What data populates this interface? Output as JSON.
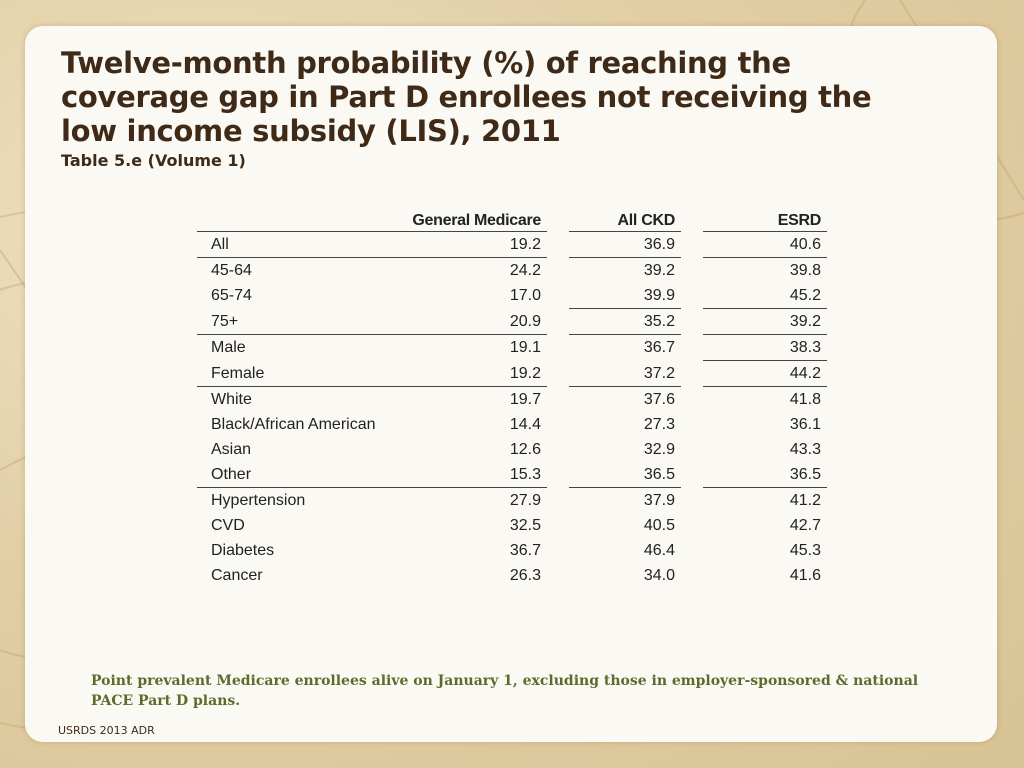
{
  "slide": {
    "title": "Twelve-month probability (%) of reaching the coverage gap in Part D enrollees not receiving the low income subsidy  (LIS), 2011",
    "subtitle": "Table 5.e (Volume 1)",
    "note": "Point prevalent Medicare enrollees alive on January 1, excluding those in employer-sponsored & national PACE Part D plans.",
    "footer": "USRDS 2013 ADR"
  },
  "table": {
    "columns": [
      "",
      "General Medicare",
      "All CKD",
      "ESRD"
    ],
    "rows": [
      {
        "label": "All",
        "values": [
          "19.2",
          "36.9",
          "40.6"
        ]
      },
      {
        "label": "45-64",
        "values": [
          "24.2",
          "39.2",
          "39.8"
        ]
      },
      {
        "label": "65-74",
        "values": [
          "17.0",
          "39.9",
          "45.2"
        ]
      },
      {
        "label": "75+",
        "values": [
          "20.9",
          "35.2",
          "39.2"
        ]
      },
      {
        "label": "Male",
        "values": [
          "19.1",
          "36.7",
          "38.3"
        ]
      },
      {
        "label": "Female",
        "values": [
          "19.2",
          "37.2",
          "44.2"
        ]
      },
      {
        "label": "White",
        "values": [
          "19.7",
          "37.6",
          "41.8"
        ]
      },
      {
        "label": "Black/African American",
        "values": [
          "14.4",
          "27.3",
          "36.1"
        ]
      },
      {
        "label": "Asian",
        "values": [
          "12.6",
          "32.9",
          "43.3"
        ]
      },
      {
        "label": "Other",
        "values": [
          "15.3",
          "36.5",
          "36.5"
        ]
      },
      {
        "label": "Hypertension",
        "values": [
          "27.9",
          "37.9",
          "41.2"
        ]
      },
      {
        "label": "CVD",
        "values": [
          "32.5",
          "40.5",
          "42.7"
        ]
      },
      {
        "label": "Diabetes",
        "values": [
          "36.7",
          "46.4",
          "45.3"
        ]
      },
      {
        "label": "Cancer",
        "values": [
          "26.3",
          "34.0",
          "41.6"
        ]
      }
    ]
  },
  "colors": {
    "title": "#3f2a17",
    "note": "#5c6b2c",
    "rule": "#444444"
  }
}
